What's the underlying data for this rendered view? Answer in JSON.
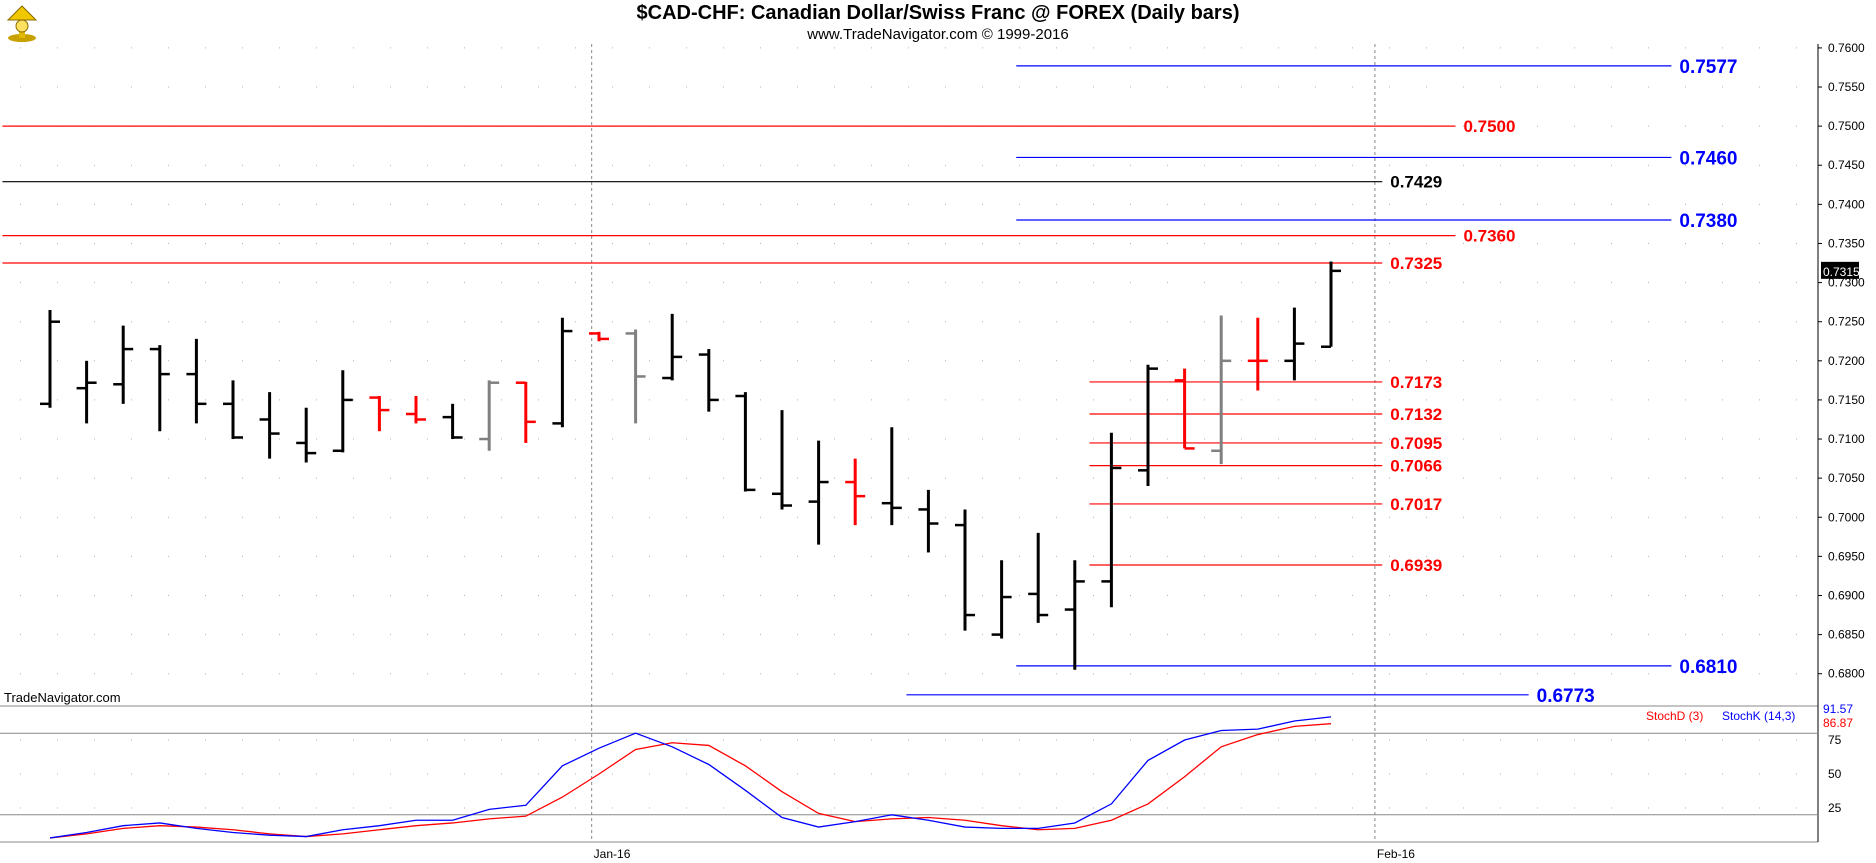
{
  "header": {
    "title": "$CAD-CHF:  Canadian Dollar/Swiss Franc @ FOREX  (Daily bars)",
    "subtitle": "www.TradeNavigator.com © 1999-2016",
    "watermark": "TradeNavigator.com"
  },
  "colors": {
    "up_bar": "#000000",
    "down_bar": "#ff0000",
    "neutral_bar": "#808080",
    "red_level": "#ff0000",
    "blue_level": "#0000ff",
    "black_level": "#000000",
    "stoch_d": "#ff0000",
    "stoch_k": "#0000ff"
  },
  "chart_data": [
    {
      "type": "ohlc",
      "ylim": [
        0.676,
        0.7605
      ],
      "price_ticks": [
        "0.7600",
        "0.7550",
        "0.7500",
        "0.7450",
        "0.7400",
        "0.7350",
        "0.7300",
        "0.7250",
        "0.7200",
        "0.7150",
        "0.7100",
        "0.7050",
        "0.7000",
        "0.6950",
        "0.6900",
        "0.6850",
        "0.6800"
      ],
      "x_ticks": [
        {
          "label": "Jan-16",
          "index": 14.8
        },
        {
          "label": "Feb-16",
          "index": 36.2
        }
      ],
      "last_value": {
        "label": "0.7315",
        "value": 0.7315
      },
      "bars": [
        {
          "o": 0.7145,
          "h": 0.7265,
          "l": 0.714,
          "c": 0.725,
          "col": "up"
        },
        {
          "o": 0.7165,
          "h": 0.72,
          "l": 0.712,
          "c": 0.7172,
          "col": "up"
        },
        {
          "o": 0.717,
          "h": 0.7245,
          "l": 0.7145,
          "c": 0.7215,
          "col": "up"
        },
        {
          "o": 0.7215,
          "h": 0.722,
          "l": 0.711,
          "c": 0.7183,
          "col": "up"
        },
        {
          "o": 0.7183,
          "h": 0.7228,
          "l": 0.712,
          "c": 0.7145,
          "col": "up"
        },
        {
          "o": 0.7145,
          "h": 0.7175,
          "l": 0.71,
          "c": 0.7102,
          "col": "up"
        },
        {
          "o": 0.7125,
          "h": 0.716,
          "l": 0.7075,
          "c": 0.7107,
          "col": "up"
        },
        {
          "o": 0.7095,
          "h": 0.714,
          "l": 0.707,
          "c": 0.7082,
          "col": "up"
        },
        {
          "o": 0.7085,
          "h": 0.7188,
          "l": 0.7083,
          "c": 0.715,
          "col": "up"
        },
        {
          "o": 0.7153,
          "h": 0.7155,
          "l": 0.711,
          "c": 0.7137,
          "col": "down"
        },
        {
          "o": 0.7132,
          "h": 0.7155,
          "l": 0.712,
          "c": 0.7125,
          "col": "down"
        },
        {
          "o": 0.7128,
          "h": 0.7145,
          "l": 0.71,
          "c": 0.7102,
          "col": "up"
        },
        {
          "o": 0.71,
          "h": 0.7175,
          "l": 0.7085,
          "c": 0.7172,
          "col": "neutral"
        },
        {
          "o": 0.7172,
          "h": 0.7173,
          "l": 0.7095,
          "c": 0.7122,
          "col": "down"
        },
        {
          "o": 0.712,
          "h": 0.7255,
          "l": 0.7115,
          "c": 0.7238,
          "col": "up"
        },
        {
          "o": 0.7235,
          "h": 0.7237,
          "l": 0.7225,
          "c": 0.7228,
          "col": "down"
        },
        {
          "o": 0.7235,
          "h": 0.724,
          "l": 0.712,
          "c": 0.718,
          "col": "neutral"
        },
        {
          "o": 0.7178,
          "h": 0.726,
          "l": 0.7175,
          "c": 0.7205,
          "col": "up"
        },
        {
          "o": 0.7208,
          "h": 0.7215,
          "l": 0.7135,
          "c": 0.715,
          "col": "up"
        },
        {
          "o": 0.7155,
          "h": 0.716,
          "l": 0.7033,
          "c": 0.7035,
          "col": "up"
        },
        {
          "o": 0.703,
          "h": 0.7137,
          "l": 0.701,
          "c": 0.7015,
          "col": "up"
        },
        {
          "o": 0.702,
          "h": 0.7098,
          "l": 0.6965,
          "c": 0.7045,
          "col": "up"
        },
        {
          "o": 0.7045,
          "h": 0.7075,
          "l": 0.699,
          "c": 0.7027,
          "col": "down"
        },
        {
          "o": 0.7018,
          "h": 0.7115,
          "l": 0.699,
          "c": 0.7012,
          "col": "up"
        },
        {
          "o": 0.701,
          "h": 0.7035,
          "l": 0.6955,
          "c": 0.6992,
          "col": "up"
        },
        {
          "o": 0.699,
          "h": 0.701,
          "l": 0.6855,
          "c": 0.6875,
          "col": "up"
        },
        {
          "o": 0.685,
          "h": 0.6945,
          "l": 0.6845,
          "c": 0.6898,
          "col": "up"
        },
        {
          "o": 0.6902,
          "h": 0.698,
          "l": 0.6865,
          "c": 0.6875,
          "col": "up"
        },
        {
          "o": 0.6882,
          "h": 0.6945,
          "l": 0.6805,
          "c": 0.6918,
          "col": "up"
        },
        {
          "o": 0.6918,
          "h": 0.7108,
          "l": 0.6885,
          "c": 0.7063,
          "col": "up"
        },
        {
          "o": 0.706,
          "h": 0.7195,
          "l": 0.704,
          "c": 0.719,
          "col": "up"
        },
        {
          "o": 0.7175,
          "h": 0.719,
          "l": 0.7088,
          "c": 0.7088,
          "col": "down"
        },
        {
          "o": 0.7085,
          "h": 0.7258,
          "l": 0.7068,
          "c": 0.72,
          "col": "neutral"
        },
        {
          "o": 0.72,
          "h": 0.7255,
          "l": 0.7162,
          "c": 0.72,
          "col": "down"
        },
        {
          "o": 0.72,
          "h": 0.7268,
          "l": 0.7175,
          "c": 0.7222,
          "col": "up"
        },
        {
          "o": 0.7218,
          "h": 0.7327,
          "l": 0.7218,
          "c": 0.7315,
          "col": "up"
        }
      ],
      "levels": [
        {
          "value": 0.7577,
          "label": "0.7577",
          "color": "blue",
          "start": 26.4,
          "end": 44.3
        },
        {
          "value": 0.75,
          "label": "0.7500",
          "color": "red",
          "start": -1.3,
          "end": 38.4
        },
        {
          "value": 0.746,
          "label": "0.7460",
          "color": "blue",
          "start": 26.4,
          "end": 44.3
        },
        {
          "value": 0.7429,
          "label": "0.7429",
          "color": "black",
          "start": -1.3,
          "end": 36.4
        },
        {
          "value": 0.738,
          "label": "0.7380",
          "color": "blue",
          "start": 26.4,
          "end": 44.3
        },
        {
          "value": 0.736,
          "label": "0.7360",
          "color": "red",
          "start": -1.3,
          "end": 38.4
        },
        {
          "value": 0.7325,
          "label": "0.7325",
          "color": "red",
          "start": -1.3,
          "end": 36.4
        },
        {
          "value": 0.7173,
          "label": "0.7173",
          "color": "red",
          "start": 28.4,
          "end": 36.4
        },
        {
          "value": 0.7132,
          "label": "0.7132",
          "color": "red",
          "start": 28.4,
          "end": 36.4
        },
        {
          "value": 0.7095,
          "label": "0.7095",
          "color": "red",
          "start": 28.4,
          "end": 36.4
        },
        {
          "value": 0.7066,
          "label": "0.7066",
          "color": "red",
          "start": 28.4,
          "end": 36.4
        },
        {
          "value": 0.7017,
          "label": "0.7017",
          "color": "red",
          "start": 28.4,
          "end": 36.4
        },
        {
          "value": 0.6939,
          "label": "0.6939",
          "color": "red",
          "start": 28.4,
          "end": 36.4
        },
        {
          "value": 0.681,
          "label": "0.6810",
          "color": "blue",
          "start": 26.4,
          "end": 44.3
        },
        {
          "value": 0.6773,
          "label": "0.6773",
          "color": "blue",
          "start": 23.4,
          "end": 40.4
        }
      ]
    },
    {
      "type": "line",
      "ylim": [
        0,
        100
      ],
      "y_ticks": [
        "75",
        "50",
        "25"
      ],
      "ref_lines": [
        20,
        80
      ],
      "legend": "top-right",
      "series": [
        {
          "name": "StochD (3)",
          "color": "red",
          "last_label": "86.87",
          "values": [
            3,
            6,
            10,
            12,
            11,
            9,
            6,
            4,
            6,
            9,
            12,
            14,
            17,
            19,
            33,
            50,
            68,
            73,
            71,
            56,
            37,
            21,
            15,
            17,
            18,
            16,
            12,
            9,
            10,
            16,
            28,
            48,
            70,
            79,
            85,
            87
          ]
        },
        {
          "name": "StochK (14,3)",
          "color": "blue",
          "last_label": "91.57",
          "values": [
            3,
            7,
            12,
            14,
            10,
            7,
            5,
            4,
            9,
            12,
            16,
            16,
            24,
            27,
            56,
            69,
            80,
            70,
            57,
            38,
            18,
            11,
            15,
            20,
            16,
            11,
            10,
            10,
            14,
            28,
            60,
            75,
            82,
            83,
            89,
            92
          ]
        }
      ]
    }
  ]
}
